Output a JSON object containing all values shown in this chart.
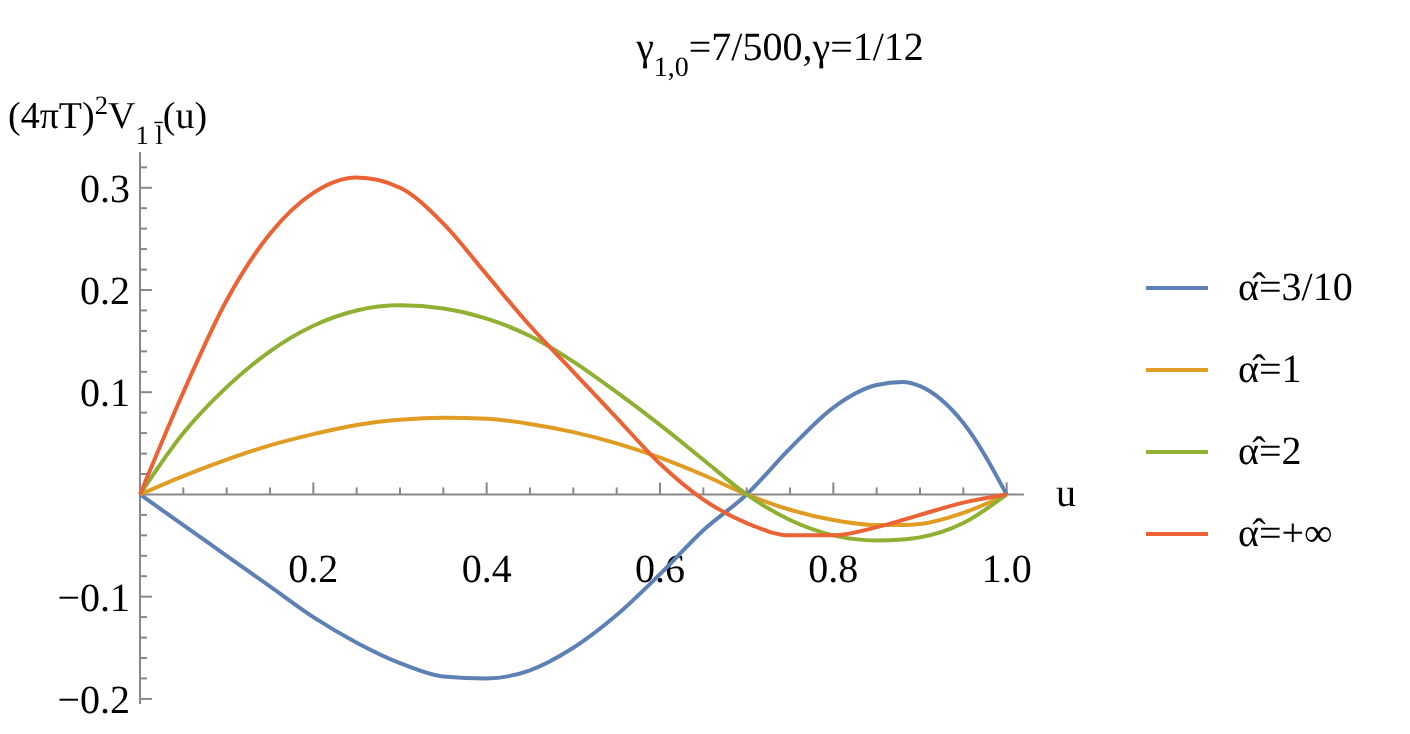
{
  "chart_data": {
    "type": "line",
    "title": "γ$_{1,0}$=7/500,γ=1/12",
    "xlabel": "u",
    "ylabel": "(4πT)$^{2}$V$_{1 l̄}$(u)",
    "x": [
      0,
      0.05,
      0.1,
      0.15,
      0.2,
      0.25,
      0.3,
      0.35,
      0.4,
      0.45,
      0.5,
      0.55,
      0.6,
      0.65,
      0.7,
      0.75,
      0.8,
      0.85,
      0.88,
      0.9,
      0.95,
      1.0
    ],
    "series": [
      {
        "name": "α̂=3/10",
        "color": "#5e81b5",
        "values": [
          0,
          -0.03,
          -0.06,
          -0.09,
          -0.12,
          -0.145,
          -0.165,
          -0.178,
          -0.18,
          -0.172,
          -0.15,
          -0.118,
          -0.078,
          -0.035,
          0,
          0.045,
          0.085,
          0.107,
          0.11,
          0.106,
          0.07,
          0
        ]
      },
      {
        "name": "α̂=1",
        "color": "#e19c24",
        "values": [
          0,
          0.018,
          0.034,
          0.048,
          0.059,
          0.068,
          0.073,
          0.075,
          0.074,
          0.069,
          0.061,
          0.05,
          0.036,
          0.019,
          0,
          -0.015,
          -0.025,
          -0.03,
          -0.03,
          -0.029,
          -0.018,
          0
        ]
      },
      {
        "name": "α̂=2",
        "color": "#8fb032",
        "values": [
          0,
          0.06,
          0.105,
          0.14,
          0.165,
          0.18,
          0.185,
          0.182,
          0.172,
          0.155,
          0.13,
          0.1,
          0.068,
          0.034,
          0,
          -0.025,
          -0.04,
          -0.045,
          -0.044,
          -0.042,
          -0.028,
          0
        ]
      },
      {
        "name": "α̂=+∞",
        "color": "#eb6235",
        "values": [
          0,
          0.1,
          0.19,
          0.255,
          0.295,
          0.31,
          0.3,
          0.265,
          0.215,
          0.165,
          0.12,
          0.075,
          0.03,
          -0.005,
          -0.028,
          -0.04,
          -0.04,
          -0.032,
          -0.025,
          -0.02,
          -0.008,
          0
        ]
      }
    ],
    "xlim": [
      0,
      1.02
    ],
    "ylim": [
      -0.205,
      0.335
    ],
    "xticks": [
      {
        "value": 0.05,
        "label": null
      },
      {
        "value": 0.1,
        "label": null
      },
      {
        "value": 0.15,
        "label": null
      },
      0.2,
      {
        "value": 0.25,
        "label": null
      },
      {
        "value": 0.3,
        "label": null
      },
      {
        "value": 0.35,
        "label": null
      },
      0.4,
      {
        "value": 0.45,
        "label": null
      },
      {
        "value": 0.5,
        "label": null
      },
      {
        "value": 0.55,
        "label": null
      },
      0.6,
      {
        "value": 0.65,
        "label": null
      },
      {
        "value": 0.7,
        "label": null
      },
      {
        "value": 0.75,
        "label": null
      },
      0.8,
      {
        "value": 0.85,
        "label": null
      },
      {
        "value": 0.9,
        "label": null
      },
      {
        "value": 0.95,
        "label": null
      },
      {
        "value": 1.0,
        "label": "1.0"
      }
    ],
    "yticks": [
      {
        "value": -0.2,
        "label": "−0.2"
      },
      {
        "value": -0.18,
        "label": null
      },
      {
        "value": -0.16,
        "label": null
      },
      {
        "value": -0.14,
        "label": null
      },
      {
        "value": -0.12,
        "label": null
      },
      {
        "value": -0.1,
        "label": "−0.1"
      },
      {
        "value": -0.08,
        "label": null
      },
      {
        "value": -0.06,
        "label": null
      },
      {
        "value": -0.04,
        "label": null
      },
      {
        "value": -0.02,
        "label": null
      },
      {
        "value": 0.02,
        "label": null
      },
      {
        "value": 0.04,
        "label": null
      },
      {
        "value": 0.06,
        "label": null
      },
      {
        "value": 0.08,
        "label": null
      },
      0.1,
      {
        "value": 0.12,
        "label": null
      },
      {
        "value": 0.14,
        "label": null
      },
      {
        "value": 0.16,
        "label": null
      },
      {
        "value": 0.18,
        "label": null
      },
      0.2,
      {
        "value": 0.22,
        "label": null
      },
      {
        "value": 0.24,
        "label": null
      },
      {
        "value": 0.26,
        "label": null
      },
      {
        "value": 0.28,
        "label": null
      },
      0.3,
      {
        "value": 0.32,
        "label": null
      }
    ],
    "grid": false,
    "legend": "right",
    "line_style": "solid"
  }
}
